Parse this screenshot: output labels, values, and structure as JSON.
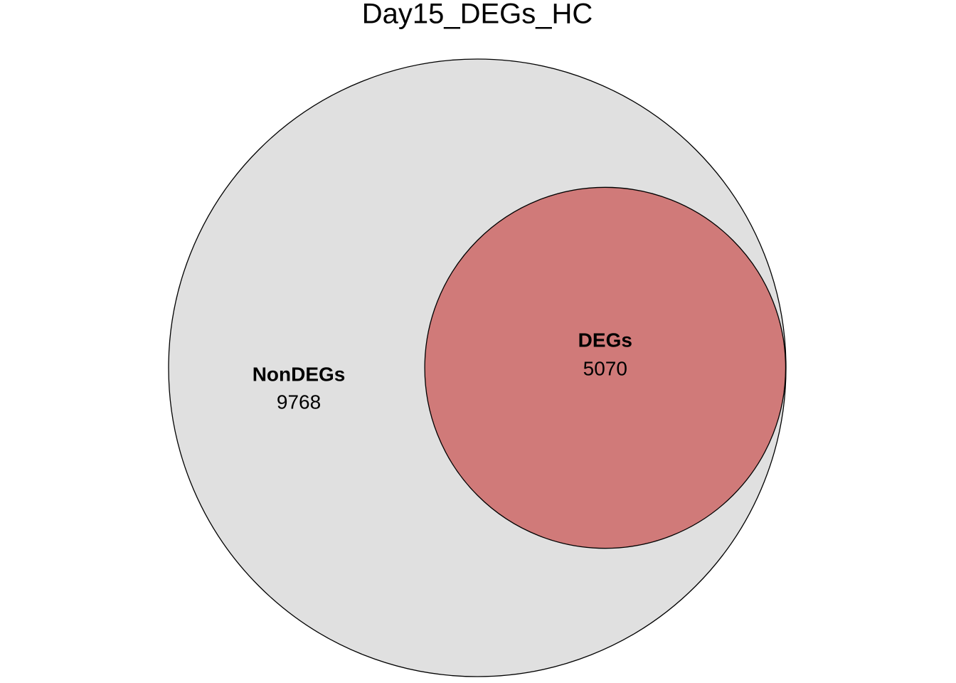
{
  "chart_data": {
    "type": "venn",
    "title": "Day15_DEGs_HC",
    "sets": [
      {
        "name": "NonDEGs",
        "value": 9768,
        "color": "#e0e0e0"
      },
      {
        "name": "DEGs",
        "value": 5070,
        "color": "#d07a79"
      }
    ]
  }
}
